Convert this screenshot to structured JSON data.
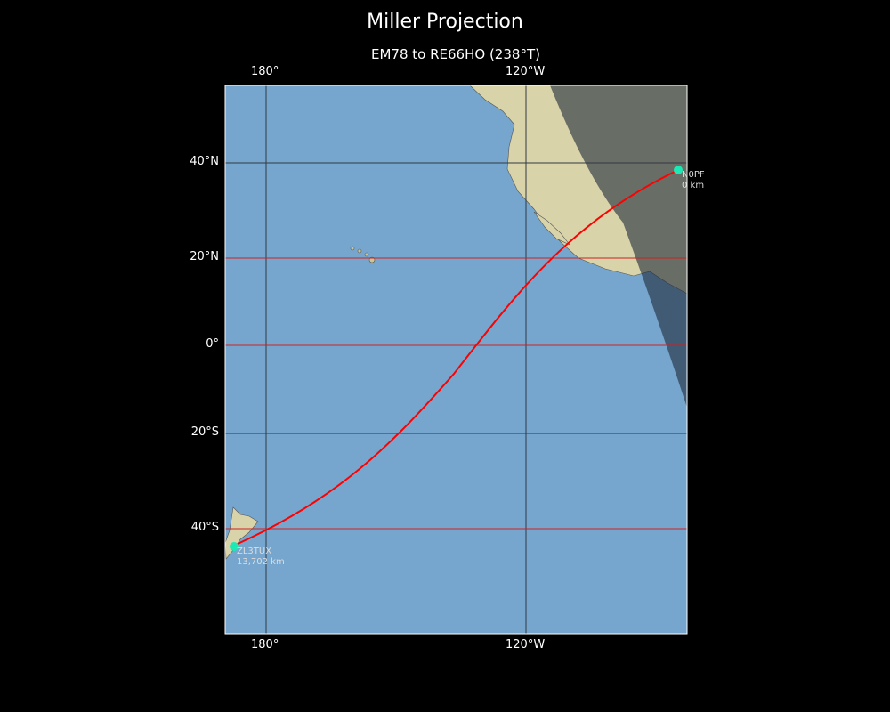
{
  "title": "Miller Projection",
  "subtitle": "EM78 to RE66HO (238°T)",
  "x_ticks_top": [
    "180°",
    "120°W"
  ],
  "x_ticks_bottom": [
    "180°",
    "120°W"
  ],
  "y_ticks": [
    "40°N",
    "20°N",
    "0°",
    "20°S",
    "40°S"
  ],
  "stations": [
    {
      "call": "N0PF",
      "distance": "0 km",
      "color": "#1de9b6"
    },
    {
      "call": "ZL3TUX",
      "distance": "13,702 km",
      "color": "#1de9b6"
    }
  ],
  "colors": {
    "path": "#ff0000",
    "ocean": "#7aaad0",
    "grid_highlight": "#cc2222",
    "grid": "#333844"
  }
}
